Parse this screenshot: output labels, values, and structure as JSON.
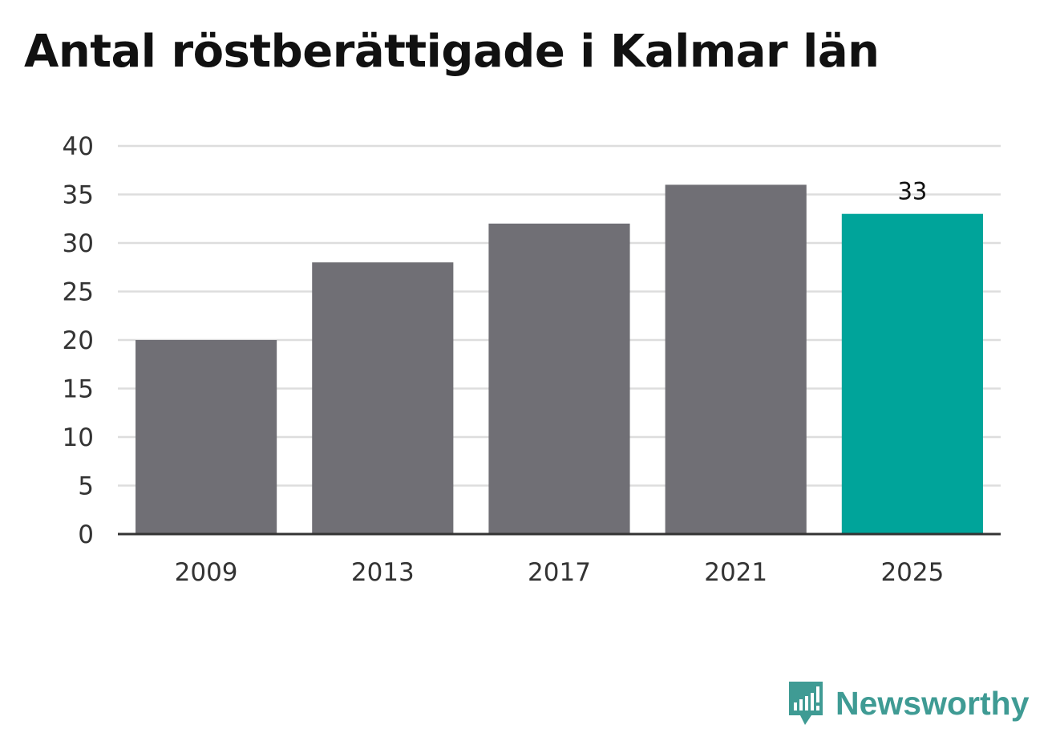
{
  "title": "Antal röstberättigade i Kalmar län",
  "brand": {
    "name": "Newsworthy",
    "icon": "newsworthy-logo-icon"
  },
  "colors": {
    "bar": "#706f75",
    "highlight": "#00a49a",
    "grid": "#dddddd",
    "axis": "#333333",
    "brand": "#3f9b94"
  },
  "chart_data": {
    "type": "bar",
    "categories": [
      "2009",
      "2013",
      "2017",
      "2021",
      "2025"
    ],
    "values": [
      20,
      28,
      32,
      36,
      33
    ],
    "highlight_index": 4,
    "data_labels": [
      null,
      null,
      null,
      null,
      "33"
    ],
    "title": "Antal röstberättigade i Kalmar län",
    "xlabel": "",
    "ylabel": "",
    "ylim": [
      0,
      40
    ],
    "yticks": [
      0,
      5,
      10,
      15,
      20,
      25,
      30,
      35,
      40
    ],
    "grid": true,
    "legend": "none"
  }
}
